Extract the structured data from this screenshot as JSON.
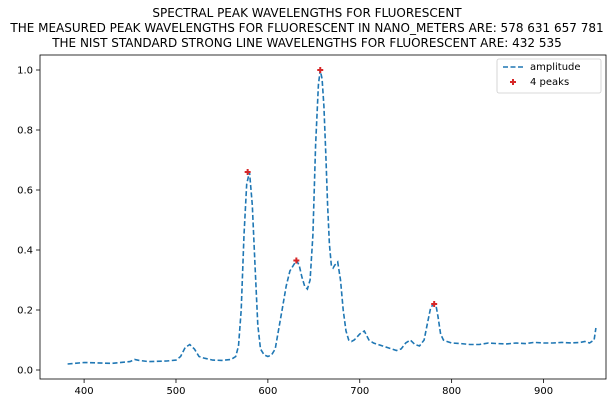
{
  "chart_data": {
    "type": "line",
    "title": [
      "SPECTRAL PEAK WAVELENGTHS FOR FLUORESCENT",
      "THE MEASURED PEAK WAVELENGTHS FOR FLUORESCENT IN NANO_METERS ARE: 578 631 657 781",
      "THE NIST STANDARD STRONG LINE WAVELENGTHS FOR FLUORESCENT ARE: 432 535"
    ],
    "xlabel": "",
    "ylabel": "",
    "xlim": [
      352,
      968
    ],
    "ylim": [
      -0.03,
      1.05
    ],
    "xticks": [
      "400",
      "500",
      "600",
      "700",
      "800",
      "900"
    ],
    "yticks": [
      "0.0",
      "0.2",
      "0.4",
      "0.6",
      "0.8",
      "1.0"
    ],
    "grid": false,
    "legend_position": "top-right",
    "series": [
      {
        "name": "amplitude",
        "style": "dashed",
        "color": "#1f77b4",
        "x": [
          382,
          400,
          430,
          450,
          455,
          460,
          470,
          490,
          500,
          505,
          510,
          515,
          520,
          525,
          530,
          540,
          550,
          560,
          565,
          568,
          571,
          574,
          577,
          580,
          583,
          586,
          589,
          592,
          596,
          600,
          604,
          608,
          612,
          616,
          620,
          624,
          628,
          631,
          634,
          637,
          640,
          643,
          646,
          649,
          652,
          655,
          657,
          659,
          661,
          663,
          665,
          667,
          669,
          671,
          673,
          676,
          679,
          682,
          685,
          688,
          691,
          694,
          697,
          700,
          705,
          710,
          715,
          720,
          725,
          730,
          735,
          740,
          745,
          750,
          755,
          760,
          765,
          770,
          774,
          777,
          779,
          781,
          783,
          785,
          788,
          791,
          795,
          800,
          810,
          820,
          830,
          840,
          850,
          860,
          870,
          880,
          890,
          900,
          910,
          920,
          930,
          940,
          945,
          950,
          955,
          957
        ],
        "y": [
          0.02,
          0.025,
          0.022,
          0.028,
          0.035,
          0.032,
          0.028,
          0.03,
          0.033,
          0.045,
          0.075,
          0.085,
          0.07,
          0.045,
          0.04,
          0.033,
          0.032,
          0.035,
          0.045,
          0.08,
          0.2,
          0.45,
          0.62,
          0.66,
          0.55,
          0.35,
          0.15,
          0.07,
          0.05,
          0.045,
          0.05,
          0.07,
          0.14,
          0.21,
          0.28,
          0.33,
          0.35,
          0.365,
          0.35,
          0.31,
          0.28,
          0.27,
          0.3,
          0.45,
          0.75,
          0.95,
          1.0,
          0.97,
          0.88,
          0.72,
          0.55,
          0.42,
          0.35,
          0.34,
          0.35,
          0.36,
          0.3,
          0.2,
          0.13,
          0.1,
          0.095,
          0.1,
          0.11,
          0.12,
          0.13,
          0.1,
          0.09,
          0.085,
          0.08,
          0.075,
          0.07,
          0.065,
          0.07,
          0.09,
          0.1,
          0.085,
          0.08,
          0.1,
          0.16,
          0.205,
          0.215,
          0.22,
          0.215,
          0.18,
          0.12,
          0.1,
          0.095,
          0.09,
          0.088,
          0.085,
          0.085,
          0.09,
          0.088,
          0.087,
          0.09,
          0.088,
          0.092,
          0.09,
          0.09,
          0.092,
          0.09,
          0.092,
          0.095,
          0.09,
          0.1,
          0.14
        ]
      },
      {
        "name": "4 peaks",
        "style": "markers",
        "marker": "+",
        "color": "#d62728",
        "x": [
          578,
          631,
          657,
          781
        ],
        "y": [
          0.66,
          0.365,
          1.0,
          0.22
        ]
      }
    ]
  }
}
